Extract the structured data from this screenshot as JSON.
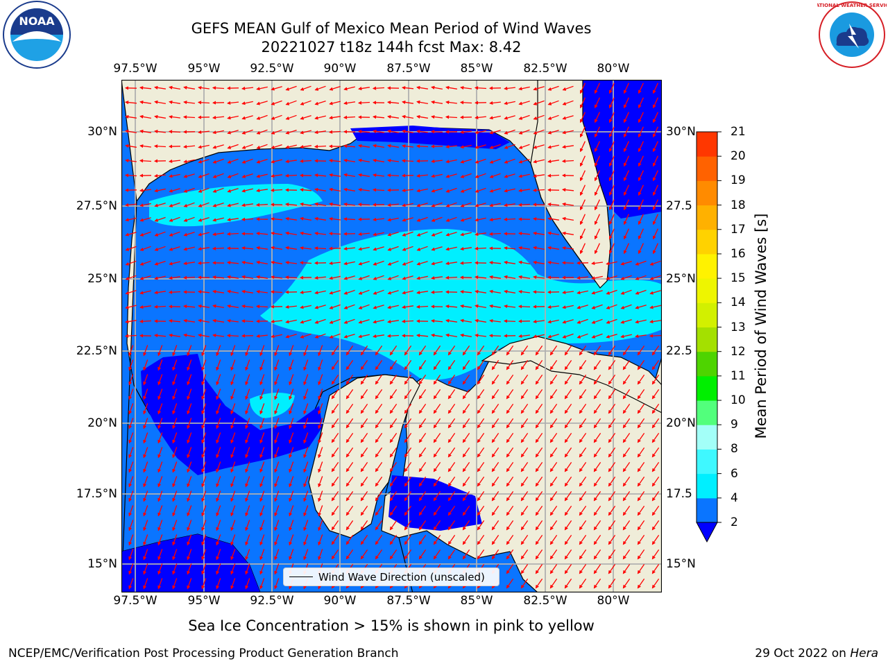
{
  "title": {
    "line1": "GEFS MEAN Gulf of Mexico Mean Period of Wind Waves",
    "line2": "20221027 t18z 144h fcst   Max: 8.42"
  },
  "logos": {
    "noaa": "NOAA",
    "noaa_ring": "NATIONAL OCEANIC AND ATMOSPHERIC ADMINISTRATION · U.S. DEPARTMENT OF COMMERCE",
    "nws_ring": "NATIONAL WEATHER SERVICE"
  },
  "map": {
    "lon_ticks": [
      "97.5°W",
      "95°W",
      "92.5°W",
      "90°W",
      "87.5°W",
      "85°W",
      "82.5°W",
      "80°W"
    ],
    "lat_ticks_left": [
      "30°N",
      "27.5°N",
      "25°N",
      "22.5°N",
      "20°N",
      "17.5°N",
      "15°N"
    ],
    "lat_ticks_right": [
      "30°N",
      "27.5",
      "25°N",
      "22.5",
      "20°N",
      "17.5",
      "15°N"
    ],
    "legend_label": "Wind Wave Direction (unscaled)",
    "colors": {
      "land": "#efedd9",
      "grid": "#b0b0b0",
      "arrow": "#ff0000"
    }
  },
  "colorbar": {
    "label": "Mean Period of Wind Waves [s]",
    "ticks": [
      "2",
      "4",
      "6",
      "8",
      "9",
      "10",
      "11",
      "12",
      "13",
      "14",
      "15",
      "16",
      "17",
      "18",
      "19",
      "20",
      "21"
    ],
    "colors": [
      "#0a75ff",
      "#00efff",
      "#3ff8ff",
      "#a3fff8",
      "#52ff7c",
      "#00ef00",
      "#4ed400",
      "#a4e000",
      "#d2f000",
      "#eef500",
      "#fff200",
      "#ffd200",
      "#ffb100",
      "#ff8b00",
      "#ff6200",
      "#ff3700",
      "#ff0000"
    ],
    "under_color": "#0000ff"
  },
  "notes": {
    "sea_ice": "Sea Ice Concentration > 15% is shown in pink to yellow",
    "footer_left": "NCEP/EMC/Verification Post Processing Product Generation Branch",
    "footer_date": "29 Oct 2022 on ",
    "footer_host": "Hera"
  }
}
